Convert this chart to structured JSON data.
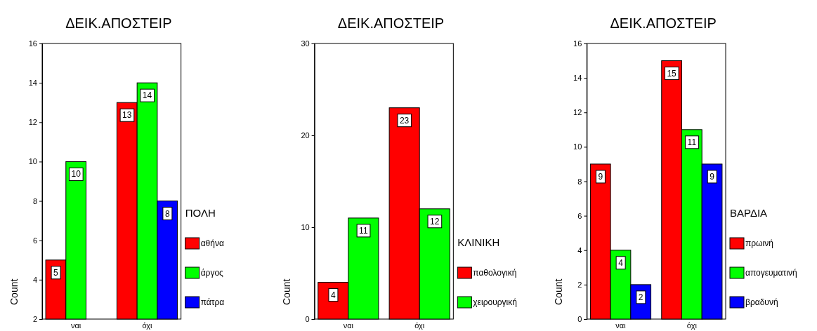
{
  "chart_data": [
    {
      "type": "bar",
      "title": "ΔΕΙΚ.ΑΠΟΣΤΕΙΡ",
      "ylabel": "Count",
      "legend_title": "ΠΟΛΗ",
      "categories": [
        "ναι",
        "όχι"
      ],
      "ylim": [
        2,
        16
      ],
      "yticks": [
        2,
        4,
        6,
        8,
        10,
        12,
        14,
        16
      ],
      "legend": "right",
      "data_labels": true,
      "series": [
        {
          "name": "αθήνα",
          "color": "#ff0000",
          "values": [
            5,
            13
          ]
        },
        {
          "name": "άργος",
          "color": "#00ff00",
          "values": [
            10,
            14
          ]
        },
        {
          "name": "πάτρα",
          "color": "#0000ff",
          "values": [
            null,
            8
          ]
        }
      ]
    },
    {
      "type": "bar",
      "title": "ΔΕΙΚ.ΑΠΟΣΤΕΙΡ",
      "ylabel": "Count",
      "legend_title": "ΚΛΙΝΙΚΗ",
      "categories": [
        "ναι",
        "όχι"
      ],
      "ylim": [
        0,
        30
      ],
      "yticks": [
        0,
        10,
        20,
        30
      ],
      "legend": "right",
      "data_labels": true,
      "series": [
        {
          "name": "παθολογική",
          "color": "#ff0000",
          "values": [
            4,
            23
          ]
        },
        {
          "name": "χειρουργική",
          "color": "#00ff00",
          "values": [
            11,
            12
          ]
        }
      ]
    },
    {
      "type": "bar",
      "title": "ΔΕΙΚ.ΑΠΟΣΤΕΙΡ",
      "ylabel": "Count",
      "legend_title": "ΒΑΡΔΙΑ",
      "categories": [
        "ναι",
        "όχι"
      ],
      "ylim": [
        0,
        16
      ],
      "yticks": [
        0,
        2,
        4,
        6,
        8,
        10,
        12,
        14,
        16
      ],
      "legend": "right",
      "data_labels": true,
      "series": [
        {
          "name": "πρωινή",
          "color": "#ff0000",
          "values": [
            9,
            15
          ]
        },
        {
          "name": "απογευματινή",
          "color": "#00ff00",
          "values": [
            4,
            11
          ]
        },
        {
          "name": "βραδυνή",
          "color": "#0000ff",
          "values": [
            2,
            9
          ]
        }
      ]
    }
  ]
}
